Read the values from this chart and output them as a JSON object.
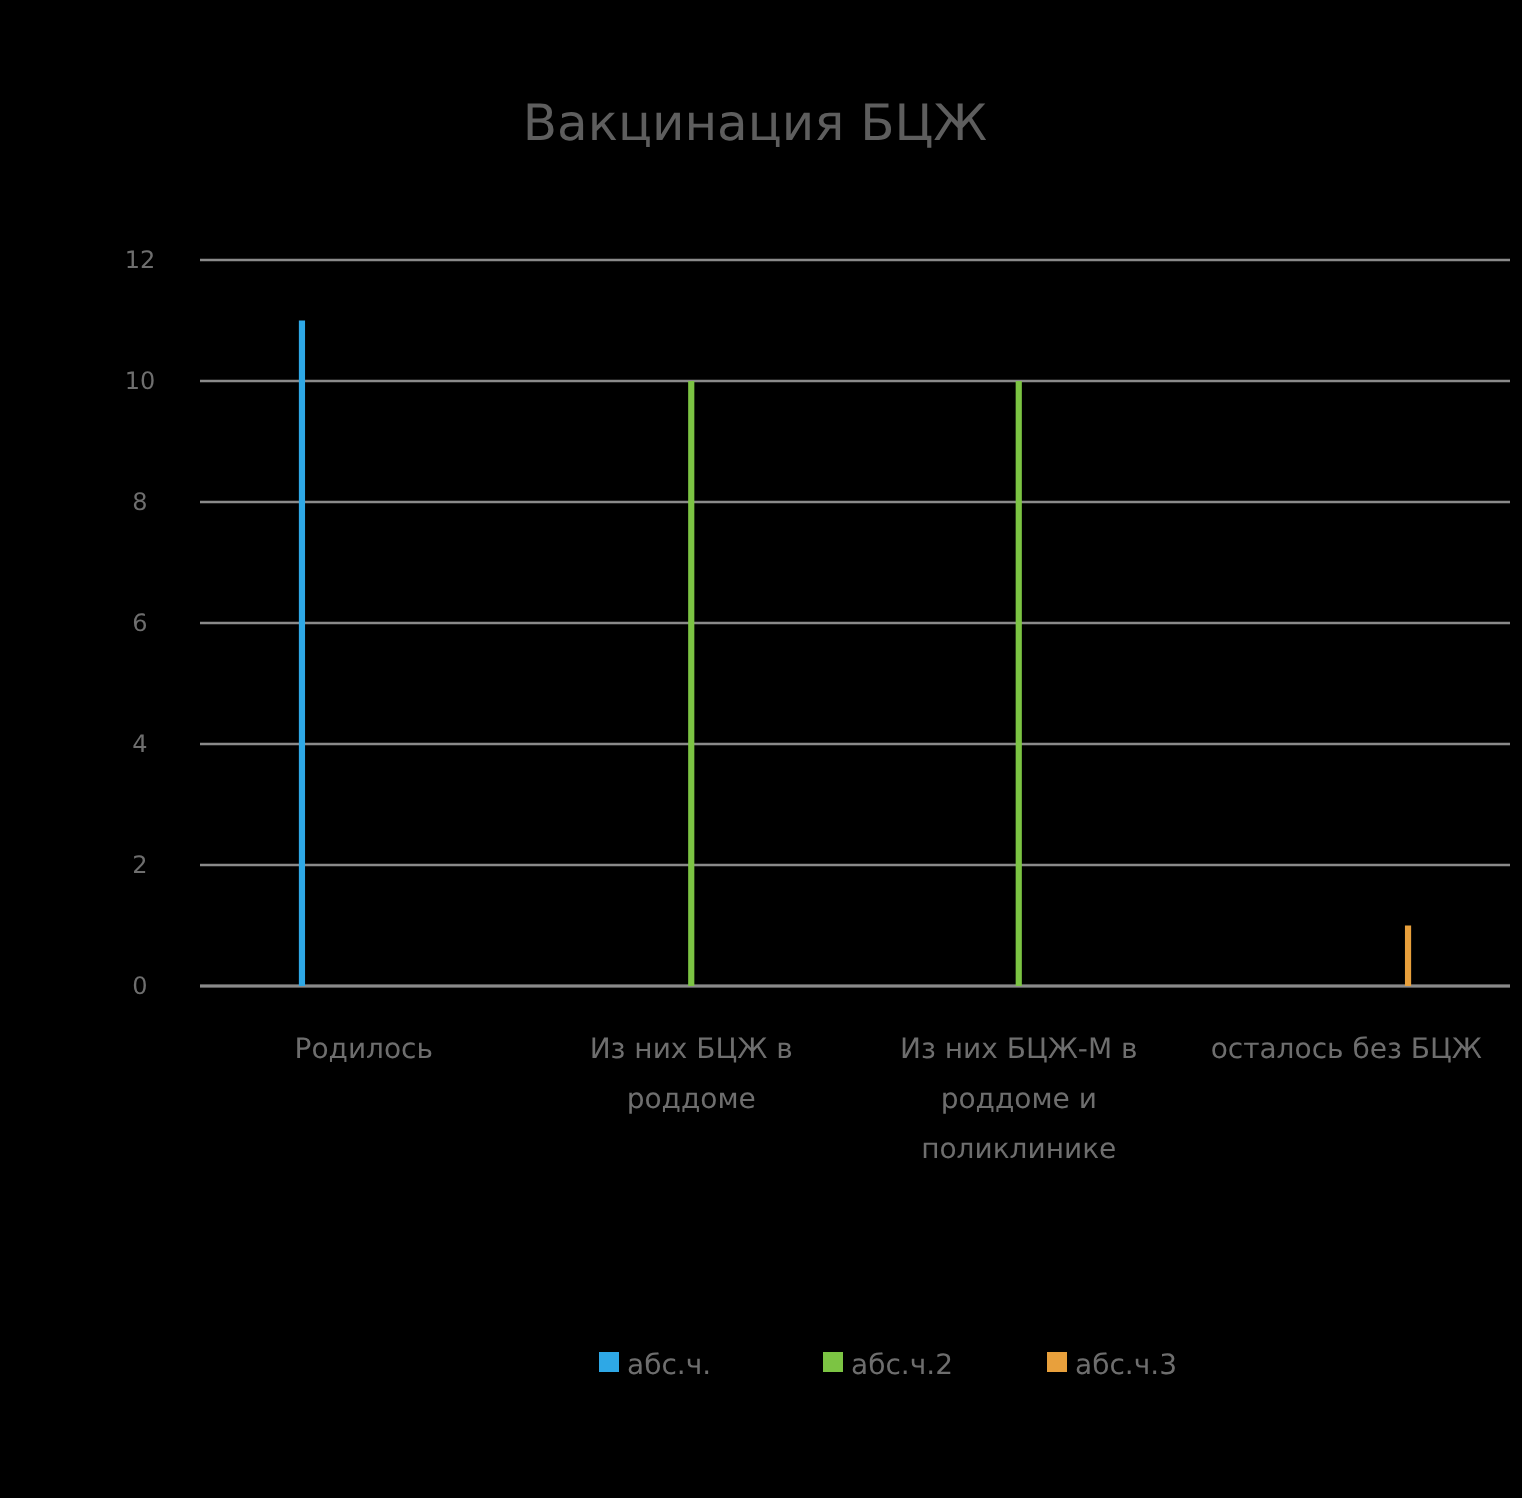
{
  "chart_data": {
    "type": "bar",
    "title": "Вакцинация БЦЖ",
    "categories": [
      "Родилось",
      "Из них БЦЖ в роддоме",
      "Из них БЦЖ-М в роддоме и поликлинике",
      "осталось без БЦЖ"
    ],
    "series": [
      {
        "name": "абс.ч.",
        "color": "#2ea8e6",
        "values": [
          11,
          null,
          null,
          null
        ]
      },
      {
        "name": "абс.ч.2",
        "color": "#7cc443",
        "values": [
          null,
          10,
          10,
          null
        ]
      },
      {
        "name": "абс.ч.3",
        "color": "#e8a03c",
        "values": [
          null,
          null,
          null,
          1
        ]
      }
    ],
    "ylim": [
      0,
      12
    ],
    "yticks": [
      0,
      2,
      4,
      6,
      8,
      10,
      12
    ],
    "grid": "y",
    "legend": "bottom"
  }
}
